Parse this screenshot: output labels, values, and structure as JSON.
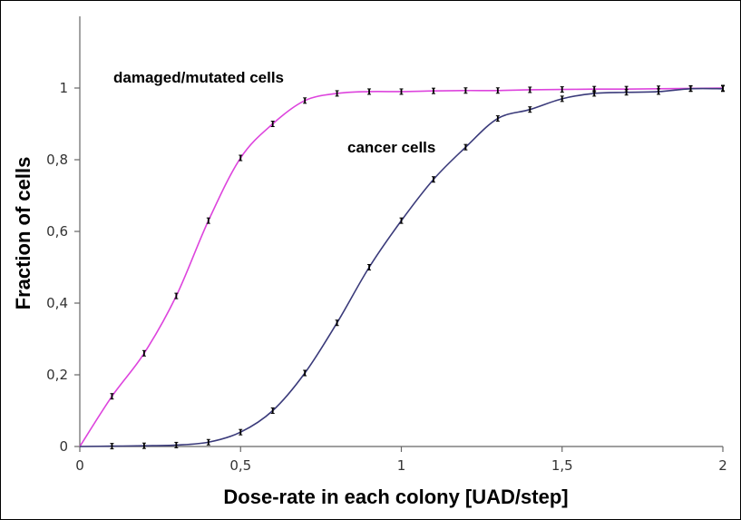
{
  "chart_data": {
    "type": "line",
    "xlabel": "Dose-rate in each colony [UAD/step]",
    "ylabel": "Fraction of cells",
    "xlim": [
      0,
      2
    ],
    "ylim": [
      0,
      1.2
    ],
    "x_ticks": [
      {
        "value": 0,
        "label": "0"
      },
      {
        "value": 0.5,
        "label": "0,5"
      },
      {
        "value": 1,
        "label": "1"
      },
      {
        "value": 1.5,
        "label": "1,5"
      },
      {
        "value": 2,
        "label": "2"
      }
    ],
    "y_ticks": [
      {
        "value": 0,
        "label": "0"
      },
      {
        "value": 0.2,
        "label": "0,2"
      },
      {
        "value": 0.4,
        "label": "0,4"
      },
      {
        "value": 0.6,
        "label": "0,6"
      },
      {
        "value": 0.8,
        "label": "0,8"
      },
      {
        "value": 1.0,
        "label": "1"
      }
    ],
    "grid": false,
    "series": [
      {
        "name": "damaged/mutated cells",
        "color": "#dd44dd",
        "points": [
          [
            0,
            0
          ],
          [
            0.1,
            0.14
          ],
          [
            0.2,
            0.26
          ],
          [
            0.3,
            0.42
          ],
          [
            0.4,
            0.63
          ],
          [
            0.5,
            0.805
          ],
          [
            0.6,
            0.9
          ],
          [
            0.7,
            0.965
          ],
          [
            0.8,
            0.985
          ],
          [
            0.9,
            0.99
          ],
          [
            1.0,
            0.99
          ],
          [
            1.1,
            0.992
          ],
          [
            1.2,
            0.993
          ],
          [
            1.3,
            0.993
          ],
          [
            1.4,
            0.995
          ],
          [
            1.5,
            0.996
          ],
          [
            1.6,
            0.997
          ],
          [
            1.7,
            0.997
          ],
          [
            1.8,
            0.998
          ],
          [
            1.9,
            0.999
          ],
          [
            2.0,
            1.0
          ]
        ]
      },
      {
        "name": "cancer cells",
        "color": "#3a3a7a",
        "points": [
          [
            0,
            0
          ],
          [
            0.1,
            0.001
          ],
          [
            0.2,
            0.002
          ],
          [
            0.3,
            0.004
          ],
          [
            0.4,
            0.012
          ],
          [
            0.5,
            0.04
          ],
          [
            0.6,
            0.1
          ],
          [
            0.7,
            0.205
          ],
          [
            0.8,
            0.345
          ],
          [
            0.9,
            0.5
          ],
          [
            1.0,
            0.63
          ],
          [
            1.1,
            0.745
          ],
          [
            1.2,
            0.835
          ],
          [
            1.3,
            0.915
          ],
          [
            1.4,
            0.94
          ],
          [
            1.5,
            0.97
          ],
          [
            1.6,
            0.985
          ],
          [
            1.7,
            0.988
          ],
          [
            1.8,
            0.99
          ],
          [
            1.9,
            0.998
          ],
          [
            2.0,
            0.998
          ]
        ]
      }
    ],
    "annotations": [
      {
        "text": "damaged/mutated cells",
        "series": 0
      },
      {
        "text": "cancer cells",
        "series": 1
      }
    ]
  }
}
